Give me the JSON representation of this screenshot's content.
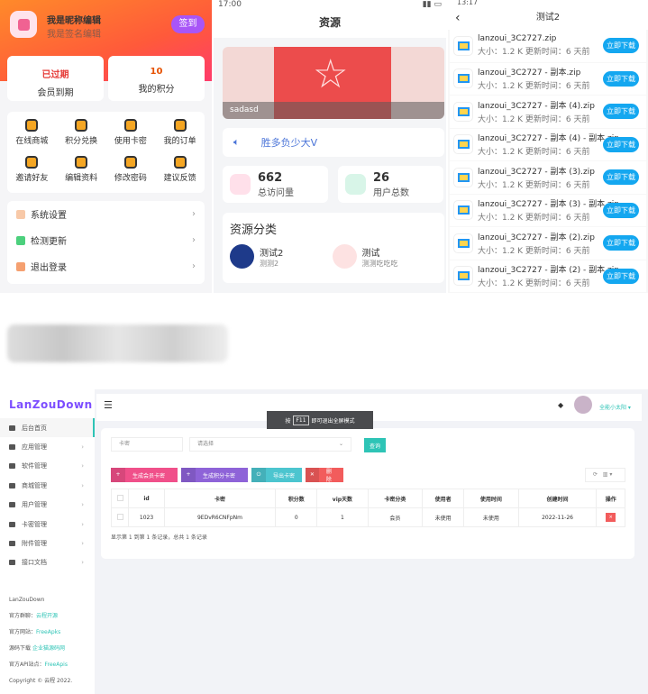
{
  "profile": {
    "nickname": "我是昵称编辑",
    "signature": "我是签名编辑",
    "sign_in": "签到",
    "stats": [
      {
        "value": "已过期",
        "label": "会员到期",
        "color": "#e53935"
      },
      {
        "value": "10",
        "label": "我的积分",
        "color": "#e65100"
      }
    ],
    "grid": [
      {
        "label": "在线商城",
        "icon": "cart-icon"
      },
      {
        "label": "积分兑换",
        "icon": "diamond-icon"
      },
      {
        "label": "使用卡密",
        "icon": "gift-icon"
      },
      {
        "label": "我的订单",
        "icon": "order-icon"
      },
      {
        "label": "邀请好友",
        "icon": "invite-icon"
      },
      {
        "label": "编辑资料",
        "icon": "edit-icon"
      },
      {
        "label": "修改密码",
        "icon": "lock-icon"
      },
      {
        "label": "建议反馈",
        "icon": "feedback-icon"
      }
    ],
    "menu": [
      {
        "label": "系统设置",
        "color": "#f8c9a8"
      },
      {
        "label": "检测更新",
        "color": "#4cd07d"
      },
      {
        "label": "退出登录",
        "color": "#f5a070"
      }
    ]
  },
  "resource": {
    "time": "17:00",
    "title": "资源",
    "banner_caption": "sadasd",
    "notice": "胜多负少大V",
    "stats": [
      {
        "value": "662",
        "label": "总访问量",
        "color": "#ffe0ea"
      },
      {
        "value": "26",
        "label": "用户总数",
        "color": "#d8f5e8"
      }
    ],
    "category_title": "资源分类",
    "categories": [
      {
        "name": "测试2",
        "desc": "测测2",
        "color": "#1e3a8a"
      },
      {
        "name": "测试",
        "desc": "测测吃吃吃",
        "color": "#fde2e2"
      }
    ]
  },
  "files": {
    "time": "13:17",
    "title": "测试2",
    "download_label": "立即下载",
    "items": [
      {
        "name": "lanzoui_3C2727.zip"
      },
      {
        "name": "lanzoui_3C2727 - 副本.zip"
      },
      {
        "name": "lanzoui_3C2727 - 副本 (4).zip"
      },
      {
        "name": "lanzoui_3C2727 - 副本 (4) - 副本.zip"
      },
      {
        "name": "lanzoui_3C2727 - 副本 (3).zip"
      },
      {
        "name": "lanzoui_3C2727 - 副本 (3) - 副本.zip"
      },
      {
        "name": "lanzoui_3C2727 - 副本 (2).zip"
      },
      {
        "name": "lanzoui_3C2727 - 副本 (2) - 副本.zip"
      }
    ],
    "meta": "大小：1.2 K  更新时间：6 天前"
  },
  "admin": {
    "logo": "LanZouDown",
    "user": "全能小太阳",
    "fullscreen_tip": {
      "pre": "按",
      "key": "F11",
      "post": "即可退出全屏模式"
    },
    "nav": [
      "后台首页",
      "应用管理",
      "软件管理",
      "商城管理",
      "用户管理",
      "卡密管理",
      "附件管理",
      "接口文档"
    ],
    "footer": {
      "name": "LanZouDown",
      "group_label": "官方群聊：",
      "group": "云程开源",
      "site_label": "官方网站：",
      "site": "FreeApks",
      "src_label": "源码下载",
      "src": "企业猫源码网",
      "api_label": "官方API站点：",
      "api": "FreeApis",
      "copyright": "Copyright © 云程 2022."
    },
    "search_placeholder": "卡密",
    "select_placeholder": "请选择",
    "query": "查询",
    "buttons": [
      {
        "label": "生成会员卡密",
        "color": "#f0508a"
      },
      {
        "label": "生成积分卡密",
        "color": "#8e63d8"
      },
      {
        "label": "导出卡密",
        "color": "#4cc5cf"
      },
      {
        "label": "删除",
        "color": "#f25c5c"
      }
    ],
    "columns": [
      "id",
      "卡密",
      "积分数",
      "vip天数",
      "卡密分类",
      "使用者",
      "使用时间",
      "创建时间",
      "操作"
    ],
    "rows": [
      [
        "1023",
        "9EDvR6CNFpNm",
        "0",
        "1",
        "会员",
        "未使用",
        "未使用",
        "2022-11-26"
      ]
    ],
    "pagination": "显示第 1 到第 1 条记录，总共 1 条记录"
  }
}
